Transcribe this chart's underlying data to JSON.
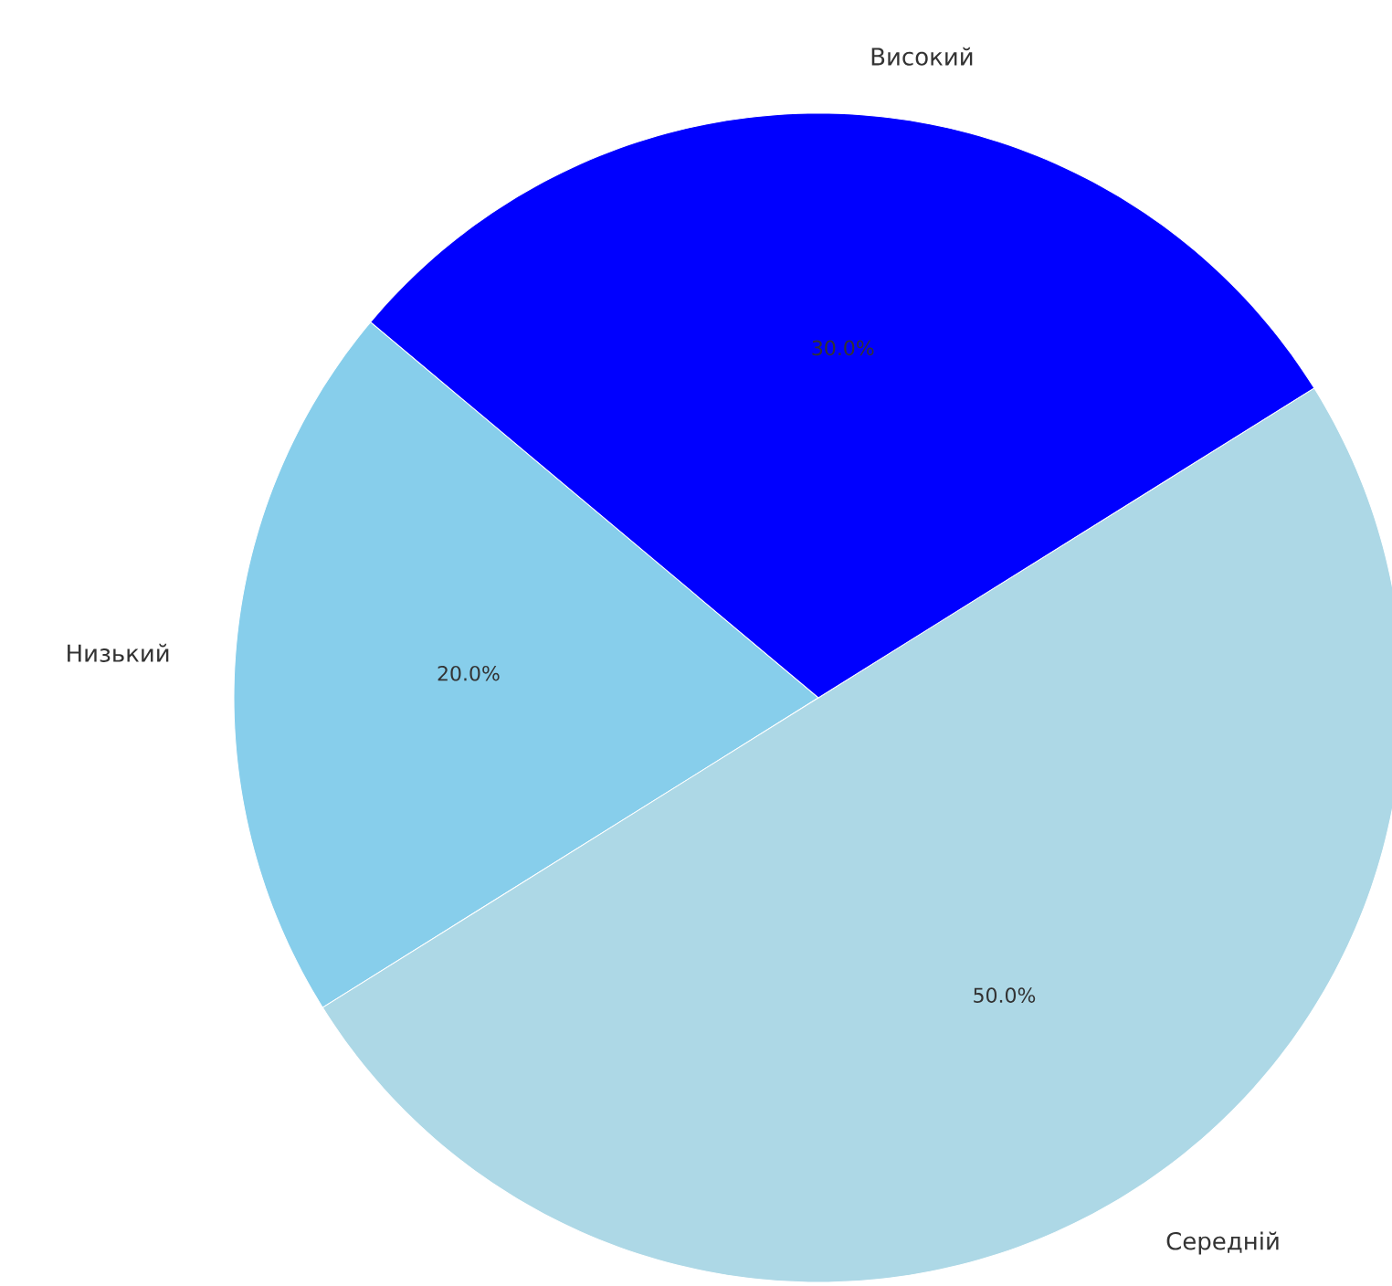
{
  "chart_data": {
    "type": "pie",
    "categories": [
      "Низький",
      "Середній",
      "Високий"
    ],
    "values": [
      20,
      50,
      30
    ],
    "value_labels": [
      "20.0%",
      "50.0%",
      "30.0%"
    ],
    "colors": [
      "#87ceeb",
      "#add8e6",
      "#0000ff"
    ]
  }
}
